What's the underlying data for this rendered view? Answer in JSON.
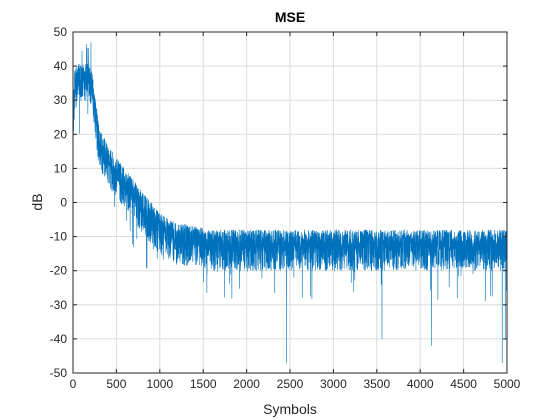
{
  "chart_data": {
    "type": "line",
    "title": "MSE",
    "xlabel": "Symbols",
    "ylabel": "dB",
    "xlim": [
      0,
      5000
    ],
    "ylim": [
      -50,
      50
    ],
    "x_ticks": [
      0,
      500,
      1000,
      1500,
      2000,
      2500,
      3000,
      3500,
      4000,
      4500,
      5000
    ],
    "y_ticks": [
      50,
      40,
      30,
      20,
      10,
      0,
      -10,
      -20,
      -30,
      -40,
      -50
    ],
    "x_tick_labels": [
      "0",
      "500",
      "1000",
      "1500",
      "2000",
      "2500",
      "3000",
      "3500",
      "4000",
      "4500",
      "5000"
    ],
    "y_tick_labels": [
      "50",
      "40",
      "30",
      "20",
      "10",
      "0",
      "-10",
      "-20",
      "-30",
      "-40",
      "-50"
    ],
    "grid": true,
    "legend": "none",
    "series": [
      {
        "color": "#0072BD",
        "n_points": 5000,
        "trend": {
          "x": [
            0,
            20,
            100,
            200,
            230,
            300,
            400,
            500,
            600,
            700,
            800,
            900,
            1000,
            1100,
            1200,
            1400,
            1600,
            2000,
            3000,
            4000,
            5000
          ],
          "y": [
            22,
            35,
            36,
            36,
            32,
            17,
            12,
            8,
            5,
            2,
            -2,
            -5,
            -8,
            -10,
            -11,
            -12,
            -13,
            -13,
            -13,
            -13,
            -13
          ]
        },
        "spread_up": 5,
        "spread_down": 7,
        "peak_y": 47,
        "dips": [
          {
            "x": 2460,
            "y": -47
          },
          {
            "x": 4945,
            "y": -47
          },
          {
            "x": 4130,
            "y": -42
          },
          {
            "x": 3560,
            "y": -40
          },
          {
            "x": 4980,
            "y": -40
          }
        ]
      }
    ]
  }
}
